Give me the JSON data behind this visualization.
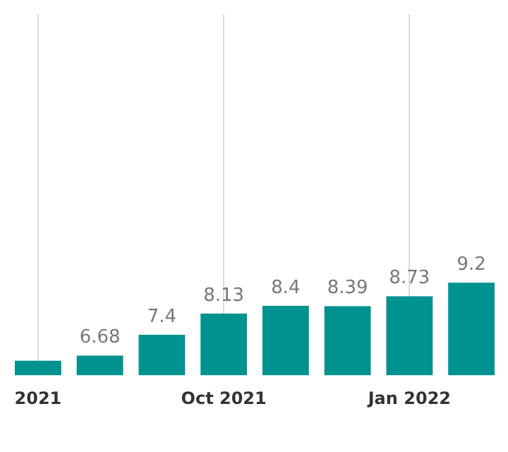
{
  "chart_data": {
    "type": "bar",
    "categories": [
      "2021",
      null,
      null,
      "Oct 2021",
      null,
      null,
      "Jan 2022",
      null
    ],
    "values": [
      6.5,
      6.68,
      7.4,
      8.13,
      8.4,
      8.39,
      8.73,
      9.2
    ],
    "value_labels": [
      null,
      "6.68",
      "7.4",
      "8.13",
      "8.4",
      "8.39",
      "8.73",
      "9.2"
    ],
    "color": "#00928f",
    "ylim": [
      6,
      18.5
    ],
    "grid": "x",
    "tick_labels": "x"
  }
}
